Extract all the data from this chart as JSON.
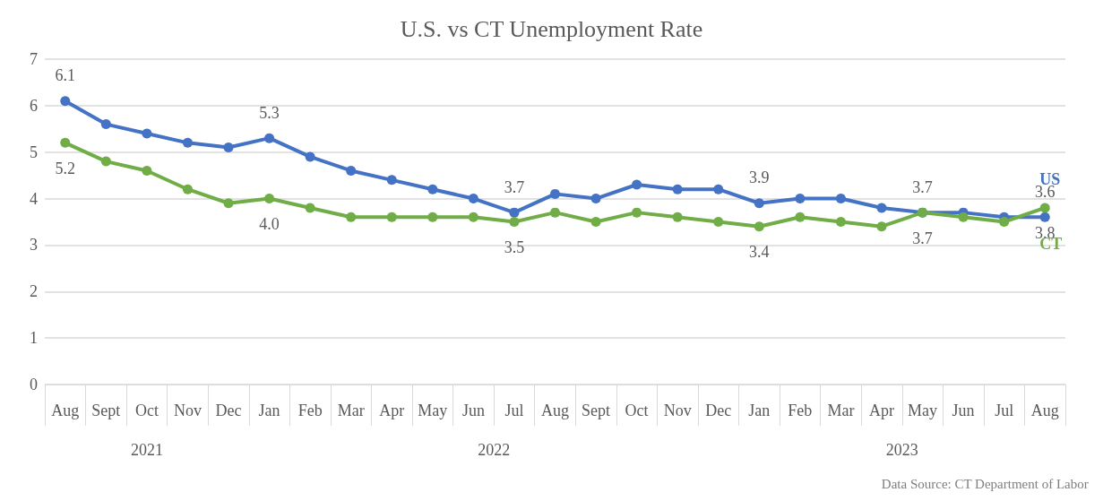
{
  "chart_data": {
    "type": "line",
    "title": "U.S. vs CT Unemployment Rate",
    "categories": [
      "Aug",
      "Sept",
      "Oct",
      "Nov",
      "Dec",
      "Jan",
      "Feb",
      "Mar",
      "Apr",
      "May",
      "Jun",
      "Jul",
      "Aug",
      "Sept",
      "Oct",
      "Nov",
      "Dec",
      "Jan",
      "Feb",
      "Mar",
      "Apr",
      "May",
      "Jun",
      "Jul",
      "Aug"
    ],
    "series": [
      {
        "name": "US",
        "color": "#4472c4",
        "values": [
          6.1,
          5.6,
          5.4,
          5.2,
          5.1,
          5.3,
          4.9,
          4.6,
          4.4,
          4.2,
          4.0,
          3.7,
          4.1,
          4.0,
          4.3,
          4.2,
          4.2,
          3.9,
          4.0,
          4.0,
          3.8,
          3.7,
          3.7,
          3.6,
          3.6
        ],
        "value_labels": [
          "6.1",
          null,
          null,
          null,
          null,
          "5.3",
          null,
          null,
          null,
          null,
          null,
          "3.7",
          null,
          null,
          null,
          null,
          null,
          "3.9",
          null,
          null,
          null,
          "3.7",
          null,
          null,
          "3.6"
        ]
      },
      {
        "name": "CT",
        "color": "#70ad47",
        "values": [
          5.2,
          4.8,
          4.6,
          4.2,
          3.9,
          4.0,
          3.8,
          3.6,
          3.6,
          3.6,
          3.6,
          3.5,
          3.7,
          3.5,
          3.7,
          3.6,
          3.5,
          3.4,
          3.6,
          3.5,
          3.4,
          3.7,
          3.6,
          3.5,
          3.8
        ],
        "value_labels": [
          "5.2",
          null,
          null,
          null,
          null,
          "4.0",
          null,
          null,
          null,
          null,
          null,
          "3.5",
          null,
          null,
          null,
          null,
          null,
          "3.4",
          null,
          null,
          null,
          "3.7",
          null,
          null,
          "3.8"
        ]
      }
    ],
    "ylim": [
      0,
      7
    ],
    "yticks": [
      0,
      1,
      2,
      3,
      4,
      5,
      6,
      7
    ],
    "grid": "y",
    "legend": false,
    "marker": "circle",
    "line_style": "solid",
    "annotations": [
      "2021",
      "2022",
      "2023",
      "Data Source: CT Department of Labor"
    ]
  }
}
